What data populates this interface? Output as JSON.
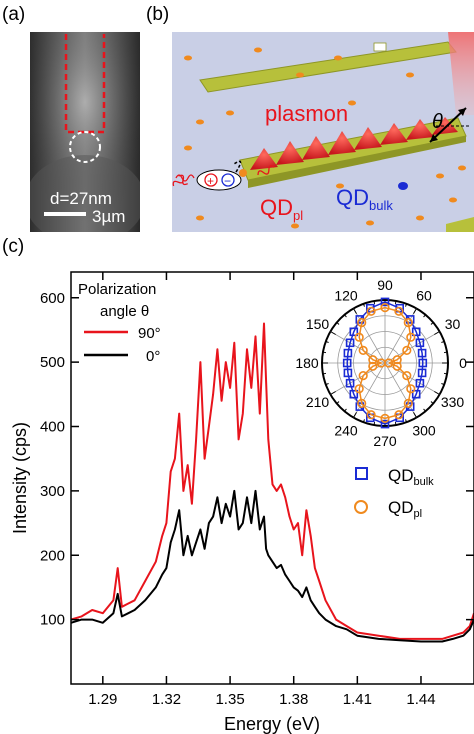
{
  "panels": {
    "a": {
      "label": "(a)",
      "distance": "d=27nm",
      "scale_bar": "3µm"
    },
    "b": {
      "label": "(b)",
      "plasmon": "plasmon",
      "theta": "θ",
      "qd_pl": {
        "base": "QD",
        "sub": "pl"
      },
      "qd_bulk": {
        "base": "QD",
        "sub": "bulk"
      },
      "charge_plus": "+",
      "charge_minus": "−"
    },
    "c": {
      "label": "(c)"
    }
  },
  "colors": {
    "red": "#e8141c",
    "black": "#000000",
    "blue": "#1a2bd4",
    "orange": "#f08a1e",
    "scene_bg": "#c9cfe6",
    "nanowire": "#b7c03b"
  },
  "chart_data": [
    {
      "type": "line",
      "xlabel": "Energy (eV)",
      "ylabel": "Intensity (cps)",
      "xlim": [
        1.275,
        1.465
      ],
      "ylim": [
        0,
        640
      ],
      "xticks": [
        "1.29",
        "1.32",
        "1.35",
        "1.38",
        "1.41",
        "1.44"
      ],
      "yticks": [
        "100",
        "200",
        "300",
        "400",
        "500",
        "600"
      ],
      "legend_title": [
        "Polarization",
        "angle θ"
      ],
      "legend_placement": "top-left",
      "series": [
        {
          "name": "90°",
          "color": "#e8141c",
          "x": [
            1.275,
            1.28,
            1.285,
            1.29,
            1.295,
            1.297,
            1.299,
            1.302,
            1.305,
            1.31,
            1.315,
            1.318,
            1.32,
            1.322,
            1.324,
            1.326,
            1.328,
            1.33,
            1.332,
            1.334,
            1.336,
            1.338,
            1.34,
            1.342,
            1.344,
            1.346,
            1.348,
            1.35,
            1.352,
            1.354,
            1.356,
            1.358,
            1.36,
            1.362,
            1.364,
            1.366,
            1.367,
            1.368,
            1.37,
            1.372,
            1.374,
            1.376,
            1.378,
            1.38,
            1.382,
            1.384,
            1.386,
            1.388,
            1.39,
            1.392,
            1.395,
            1.4,
            1.405,
            1.41,
            1.42,
            1.43,
            1.44,
            1.45,
            1.455,
            1.46,
            1.463,
            1.465
          ],
          "y": [
            100,
            105,
            115,
            110,
            130,
            180,
            120,
            125,
            130,
            160,
            190,
            230,
            250,
            330,
            350,
            420,
            300,
            340,
            280,
            380,
            500,
            350,
            400,
            450,
            520,
            440,
            500,
            460,
            530,
            380,
            420,
            520,
            460,
            540,
            420,
            560,
            470,
            380,
            310,
            300,
            310,
            290,
            260,
            240,
            250,
            200,
            270,
            230,
            180,
            160,
            130,
            100,
            90,
            80,
            75,
            70,
            70,
            70,
            75,
            80,
            90,
            110
          ]
        },
        {
          "name": "0°",
          "color": "#000000",
          "x": [
            1.275,
            1.28,
            1.285,
            1.29,
            1.295,
            1.297,
            1.299,
            1.302,
            1.305,
            1.31,
            1.315,
            1.318,
            1.32,
            1.322,
            1.324,
            1.326,
            1.328,
            1.33,
            1.332,
            1.334,
            1.336,
            1.338,
            1.34,
            1.342,
            1.344,
            1.346,
            1.348,
            1.35,
            1.352,
            1.354,
            1.356,
            1.358,
            1.36,
            1.362,
            1.364,
            1.366,
            1.367,
            1.368,
            1.37,
            1.372,
            1.374,
            1.376,
            1.378,
            1.38,
            1.382,
            1.384,
            1.386,
            1.388,
            1.39,
            1.392,
            1.395,
            1.4,
            1.405,
            1.41,
            1.42,
            1.43,
            1.44,
            1.45,
            1.455,
            1.46,
            1.463,
            1.465
          ],
          "y": [
            95,
            100,
            100,
            95,
            110,
            140,
            105,
            110,
            115,
            130,
            150,
            170,
            180,
            220,
            240,
            270,
            200,
            230,
            200,
            220,
            240,
            210,
            250,
            260,
            290,
            250,
            280,
            260,
            300,
            240,
            250,
            290,
            250,
            300,
            240,
            260,
            210,
            200,
            190,
            180,
            185,
            170,
            160,
            150,
            145,
            135,
            150,
            130,
            120,
            110,
            100,
            90,
            85,
            75,
            70,
            68,
            66,
            66,
            70,
            75,
            85,
            100
          ]
        }
      ]
    },
    {
      "type": "scatter",
      "subtype": "polar",
      "angle_unit": "degrees",
      "angle_labels": [
        "0",
        "30",
        "60",
        "90",
        "120",
        "150",
        "180",
        "210",
        "240",
        "270",
        "300",
        "330"
      ],
      "legend_placement": "bottom-right",
      "series": [
        {
          "name": "QD_bulk",
          "label_base": "QD",
          "label_sub": "bulk",
          "marker": "square",
          "color": "#1a2bd4",
          "theta": [
            0,
            15,
            30,
            45,
            60,
            75,
            90,
            105,
            120,
            135,
            150,
            165,
            180,
            195,
            210,
            225,
            240,
            255,
            270,
            285,
            300,
            315,
            330,
            345
          ],
          "r": [
            0.6,
            0.61,
            0.64,
            0.7,
            0.8,
            0.9,
            0.97,
            0.9,
            0.8,
            0.7,
            0.64,
            0.61,
            0.6,
            0.61,
            0.64,
            0.7,
            0.8,
            0.9,
            0.97,
            0.9,
            0.8,
            0.7,
            0.64,
            0.61
          ]
        },
        {
          "name": "QD_pl",
          "label_base": "QD",
          "label_sub": "pl",
          "marker": "circle",
          "color": "#f08a1e",
          "theta": [
            0,
            15,
            30,
            45,
            60,
            75,
            90,
            105,
            120,
            135,
            150,
            165,
            180,
            195,
            210,
            225,
            240,
            255,
            270,
            285,
            300,
            315,
            330,
            345
          ],
          "r": [
            0.06,
            0.2,
            0.4,
            0.58,
            0.74,
            0.85,
            0.88,
            0.85,
            0.74,
            0.58,
            0.4,
            0.2,
            0.06,
            0.2,
            0.4,
            0.58,
            0.74,
            0.85,
            0.88,
            0.85,
            0.74,
            0.58,
            0.4,
            0.2
          ]
        }
      ]
    }
  ]
}
